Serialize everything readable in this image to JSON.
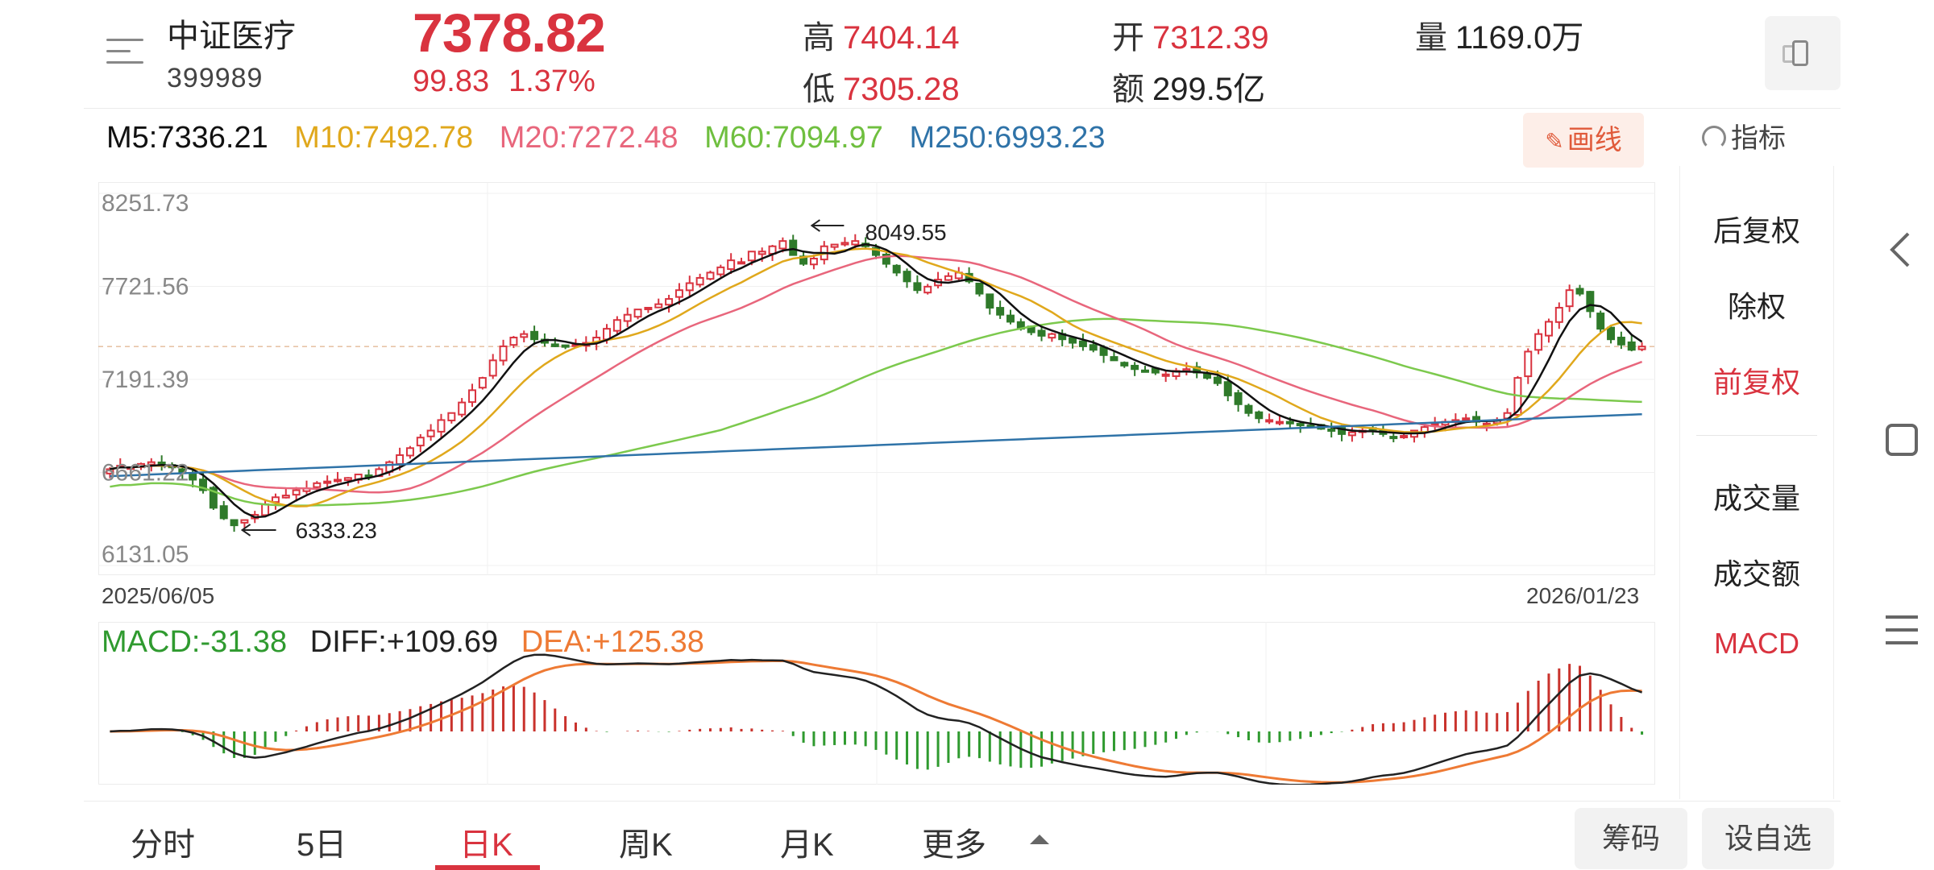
{
  "header": {
    "name": "中证医疗",
    "code": "399989",
    "price": "7378.82",
    "change": "99.83",
    "change_pct": "1.37%",
    "high_label": "高",
    "high": "7404.14",
    "low_label": "低",
    "low": "7305.28",
    "open_label": "开",
    "open": "7312.39",
    "amount_label": "额",
    "amount": "299.5亿",
    "volume_label": "量",
    "volume": "1169.0万"
  },
  "ma": {
    "m5": "M5:7336.21",
    "m10": "M10:7492.78",
    "m20": "M20:7272.48",
    "m60": "M60:7094.97",
    "m250": "M250:6993.23"
  },
  "colors": {
    "up": "#d9333f",
    "down": "#2f7a2a",
    "m5": "#111111",
    "m10": "#e0a81c",
    "m20": "#e8667c",
    "m60": "#7cc94d",
    "m250": "#2f73a8",
    "macd": "#2f9a2f",
    "diff": "#222222",
    "dea": "#ee7a34"
  },
  "toolbar": {
    "draw_label": "画线",
    "indicator_label": "指标"
  },
  "side_panel": {
    "items": [
      "后复权",
      "除权",
      "前复权",
      "成交量",
      "成交额",
      "MACD"
    ]
  },
  "macd": {
    "macd_label": "MACD:-31.38",
    "diff_label": "DIFF:+109.69",
    "dea_label": "DEA:+125.38"
  },
  "tabs": {
    "items": [
      "分时",
      "5日",
      "日K",
      "周K",
      "月K",
      "更多"
    ],
    "active": "日K",
    "chips_btn": "筹码",
    "watchlist_btn": "设自选"
  },
  "chart_data": {
    "type": "candlestick",
    "y_ticks": [
      "8251.73",
      "7721.56",
      "7191.39",
      "6661.22",
      "6131.05"
    ],
    "ylim": [
      6131.05,
      8251.73
    ],
    "x_start_label": "2025/06/05",
    "x_end_label": "2026/01/23",
    "max_annotation": "8049.55",
    "min_annotation": "6333.23",
    "close_series": [
      6680,
      6700,
      6690,
      6710,
      6720,
      6700,
      6690,
      6660,
      6620,
      6560,
      6460,
      6400,
      6360,
      6390,
      6420,
      6480,
      6520,
      6530,
      6560,
      6570,
      6600,
      6610,
      6620,
      6630,
      6650,
      6640,
      6680,
      6720,
      6760,
      6800,
      6860,
      6900,
      6960,
      7000,
      7060,
      7130,
      7200,
      7300,
      7380,
      7430,
      7450,
      7420,
      7400,
      7380,
      7380,
      7390,
      7400,
      7430,
      7480,
      7530,
      7560,
      7590,
      7600,
      7620,
      7650,
      7700,
      7740,
      7770,
      7800,
      7830,
      7870,
      7860,
      7920,
      7920,
      7950,
      7980,
      7900,
      7850,
      7880,
      7950,
      7960,
      7970,
      7980,
      7950,
      7900,
      7850,
      7800,
      7750,
      7700,
      7720,
      7760,
      7780,
      7800,
      7750,
      7680,
      7600,
      7560,
      7520,
      7480,
      7460,
      7440,
      7450,
      7420,
      7400,
      7380,
      7360,
      7330,
      7300,
      7270,
      7250,
      7240,
      7230,
      7220,
      7240,
      7250,
      7230,
      7200,
      7170,
      7100,
      7050,
      7000,
      6970,
      6960,
      6950,
      6940,
      6930,
      6920,
      6910,
      6900,
      6880,
      6890,
      6900,
      6910,
      6880,
      6860,
      6870,
      6900,
      6920,
      6940,
      6950,
      6960,
      6970,
      6950,
      6940,
      6960,
      7000,
      7200,
      7350,
      7450,
      7520,
      7600,
      7700,
      7680,
      7580,
      7480,
      7420,
      7390,
      7360,
      7378.82
    ],
    "m250_start": 6640,
    "m250_end": 6993.23,
    "macd_note": "histogram red above zero, green below"
  }
}
